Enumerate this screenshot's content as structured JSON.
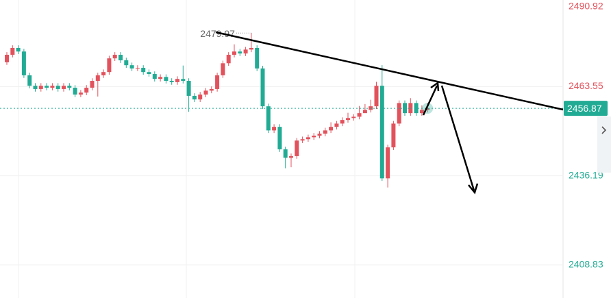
{
  "chart_data": {
    "type": "candlestick",
    "ylim": [
      2398.7,
      2490.1
    ],
    "yticks": [
      2490.92,
      2463.55,
      2436.19,
      2408.83
    ],
    "grid": true,
    "up_color": "#e2525c",
    "down_color": "#22ab94",
    "last_price": 2456.87,
    "max_marker": 2479.97,
    "max_index": 43,
    "open": [
      2471.0,
      2473.3,
      2475.4,
      2474.3,
      2467.0,
      2463.8,
      2462.8,
      2463.8,
      2463.2,
      2463.8,
      2462.8,
      2463.8,
      2463.2,
      2461.1,
      2461.7,
      2463.2,
      2465.3,
      2467.0,
      2468.0,
      2472.2,
      2473.3,
      2471.6,
      2470.1,
      2469.1,
      2469.3,
      2468.0,
      2467.4,
      2465.9,
      2466.5,
      2465.3,
      2464.9,
      2465.9,
      2465.3,
      2460.7,
      2459.6,
      2461.1,
      2462.3,
      2462.8,
      2467.0,
      2470.7,
      2473.3,
      2474.3,
      2473.7,
      2474.9,
      2475.4,
      2469.1,
      2457.5,
      2450.1,
      2451.2,
      2444.3,
      2441.7,
      2442.2,
      2447.0,
      2447.4,
      2448.0,
      2448.5,
      2449.1,
      2450.1,
      2451.2,
      2452.2,
      2453.3,
      2453.9,
      2454.3,
      2455.4,
      2456.4,
      2457.5,
      2463.8,
      2435.4,
      2444.9,
      2452.2,
      2458.5,
      2455.4,
      2458.5,
      2455.4,
      2456.4
    ],
    "high": [
      2474.1,
      2476.2,
      2476.2,
      2475.1,
      2467.8,
      2464.6,
      2464.6,
      2464.6,
      2464.6,
      2464.6,
      2464.6,
      2464.6,
      2464.0,
      2462.5,
      2464.0,
      2466.1,
      2467.8,
      2468.8,
      2473.0,
      2474.1,
      2474.1,
      2472.4,
      2470.9,
      2470.1,
      2470.1,
      2468.8,
      2468.2,
      2467.3,
      2467.3,
      2466.1,
      2466.7,
      2470.0,
      2466.1,
      2461.5,
      2461.9,
      2463.1,
      2463.6,
      2467.8,
      2471.5,
      2474.1,
      2476.5,
      2475.1,
      2475.7,
      2479.97,
      2476.2,
      2469.9,
      2458.3,
      2452.0,
      2452.0,
      2445.1,
      2443.0,
      2447.8,
      2448.2,
      2448.8,
      2449.3,
      2449.9,
      2450.9,
      2452.6,
      2453.0,
      2454.1,
      2455.5,
      2455.1,
      2457.6,
      2458.2,
      2459.5,
      2465.0,
      2470.1,
      2445.7,
      2453.0,
      2459.3,
      2459.3,
      2460.0,
      2459.3,
      2457.8,
      2458.5
    ],
    "low": [
      2470.2,
      2472.5,
      2473.5,
      2466.2,
      2463.0,
      2462.0,
      2462.0,
      2462.4,
      2462.4,
      2462.0,
      2462.0,
      2462.4,
      2460.3,
      2460.3,
      2460.9,
      2462.4,
      2460.5,
      2466.2,
      2467.2,
      2471.4,
      2470.8,
      2469.3,
      2468.3,
      2468.3,
      2467.2,
      2466.6,
      2465.1,
      2465.1,
      2464.5,
      2464.1,
      2464.1,
      2464.5,
      2455.8,
      2458.8,
      2458.8,
      2460.3,
      2461.5,
      2462.0,
      2466.2,
      2469.9,
      2472.5,
      2472.9,
      2472.9,
      2474.1,
      2468.3,
      2456.7,
      2449.3,
      2449.3,
      2443.5,
      2438.5,
      2438.8,
      2441.4,
      2446.2,
      2446.6,
      2447.2,
      2447.7,
      2448.3,
      2449.3,
      2450.4,
      2451.4,
      2452.5,
      2453.1,
      2453.5,
      2455.6,
      2455.6,
      2456.7,
      2434.6,
      2432.6,
      2444.1,
      2451.4,
      2454.6,
      2454.6,
      2454.6,
      2454.6,
      2455.6
    ],
    "close": [
      2473.3,
      2475.4,
      2474.3,
      2467.0,
      2463.8,
      2462.8,
      2463.8,
      2463.2,
      2463.8,
      2462.8,
      2463.8,
      2463.2,
      2461.1,
      2461.7,
      2463.2,
      2465.3,
      2467.0,
      2468.0,
      2472.2,
      2473.3,
      2471.6,
      2470.1,
      2469.1,
      2469.3,
      2468.0,
      2467.4,
      2465.9,
      2466.5,
      2465.3,
      2464.9,
      2465.9,
      2465.3,
      2460.7,
      2459.6,
      2461.1,
      2462.3,
      2462.8,
      2467.0,
      2470.7,
      2473.3,
      2474.3,
      2473.7,
      2474.9,
      2475.4,
      2469.1,
      2457.5,
      2450.1,
      2451.2,
      2444.3,
      2441.7,
      2442.2,
      2447.0,
      2447.4,
      2448.0,
      2448.5,
      2449.1,
      2450.1,
      2451.2,
      2452.2,
      2453.3,
      2453.9,
      2454.3,
      2455.4,
      2456.4,
      2457.5,
      2463.8,
      2435.4,
      2444.9,
      2452.2,
      2458.5,
      2455.4,
      2458.5,
      2455.4,
      2456.4,
      2456.9
    ]
  }
}
